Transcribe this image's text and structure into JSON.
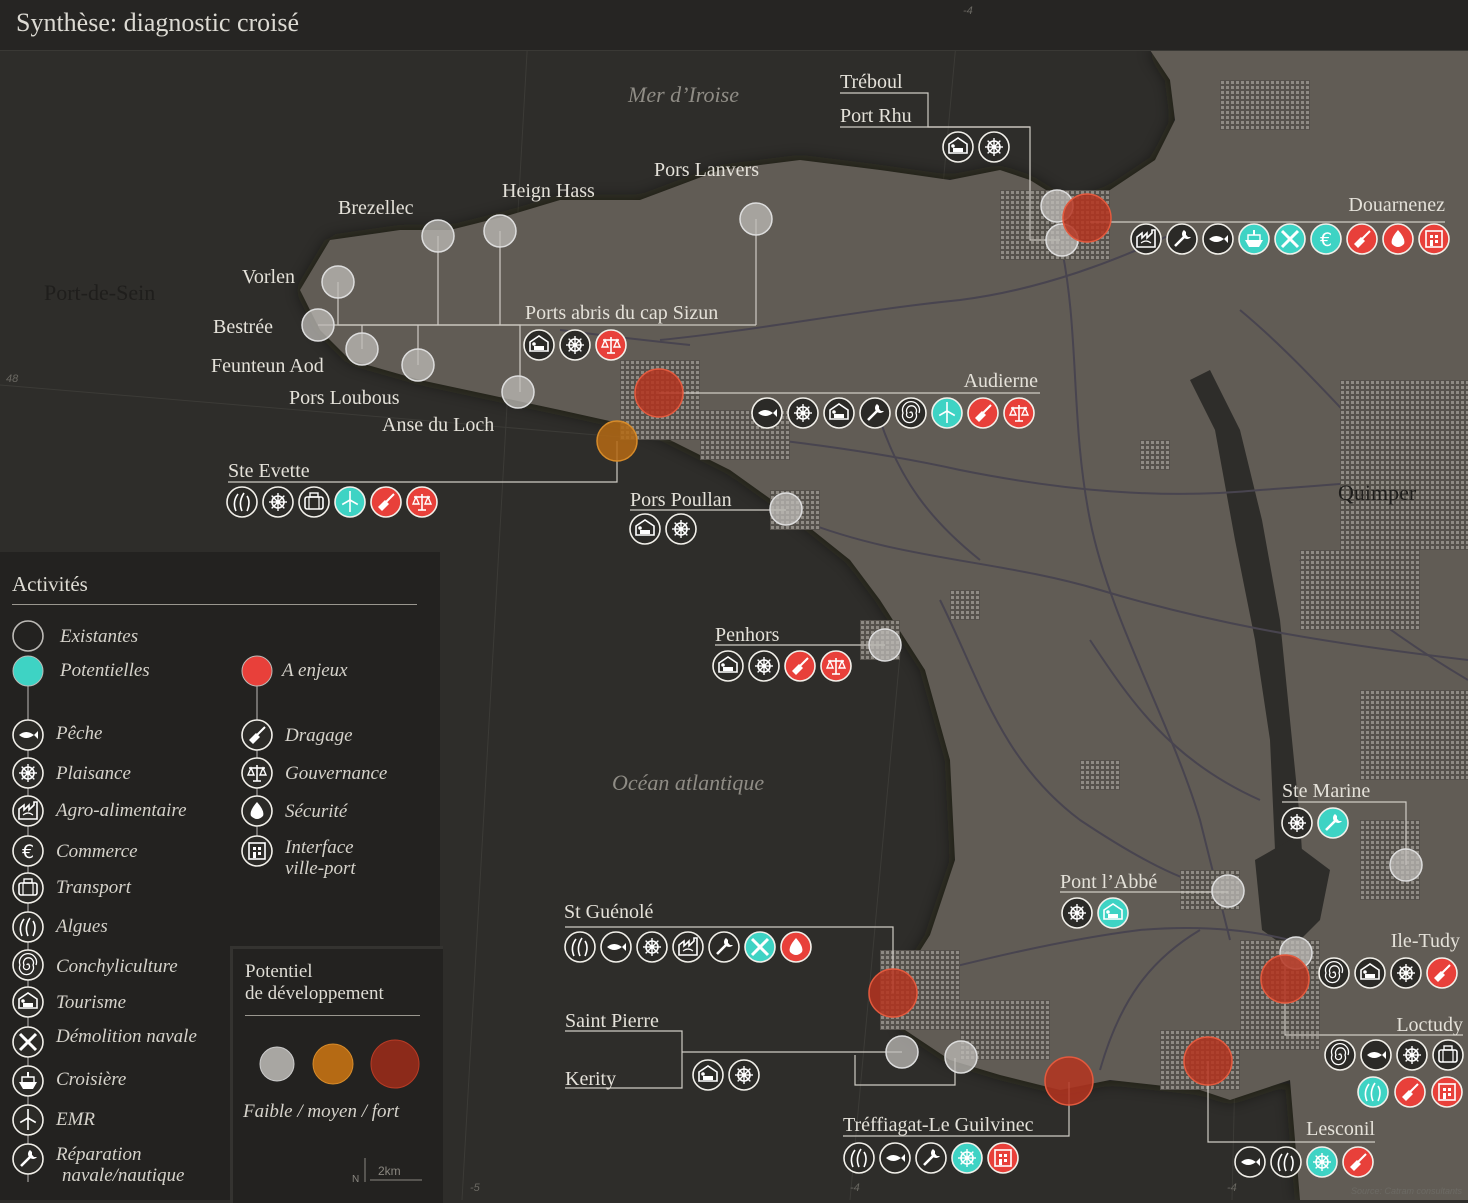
{
  "title": "Synthèse: diagnostic croisé",
  "seas": {
    "iroise": "Mer d’Iroise",
    "atlantique": "Océan atlantique"
  },
  "cities": {
    "sein": "Port-de-Sein",
    "quimper": "Quimper"
  },
  "grid": {
    "lat48": "48",
    "lon_m5": "-5",
    "lon_m4a": "-4",
    "lon_m4b": "-4",
    "lon_m4c": "-4"
  },
  "scale": {
    "north": "N",
    "label": "2km"
  },
  "source": "Source: Catram consultants",
  "colors": {
    "land": "#605b54",
    "sea": "#2e2d2a",
    "existing": "#bdbbb7",
    "potential": "#3ed3c4",
    "issue": "#e8403a",
    "low": "#a8a6a2",
    "medium": "#b56a14",
    "strong": "#b53420"
  },
  "ports": [
    {
      "id": "treboul",
      "name": "Tréboul",
      "level": "faible",
      "activities": []
    },
    {
      "id": "port-rhu",
      "name": "Port Rhu",
      "level": "faible",
      "activities": [
        "tourisme-e",
        "plaisance-e"
      ]
    },
    {
      "id": "douarnenez",
      "name": "Douarnenez",
      "level": "fort",
      "activities": [
        "agro-e",
        "reparation-e",
        "peche-e",
        "croisiere-p",
        "demolition-p",
        "commerce-p",
        "dragage-i",
        "securite-i",
        "interface-i"
      ]
    },
    {
      "id": "pors-lanvers",
      "name": "Pors Lanvers",
      "level": "faible",
      "activities": []
    },
    {
      "id": "heign-hass",
      "name": "Heign Hass",
      "level": "faible",
      "activities": []
    },
    {
      "id": "brezellec",
      "name": "Brezellec",
      "level": "faible",
      "activities": []
    },
    {
      "id": "vorlen",
      "name": "Vorlen",
      "level": "faible",
      "activities": []
    },
    {
      "id": "bestree",
      "name": "Bestrée",
      "level": "faible",
      "activities": []
    },
    {
      "id": "feunteun-aod",
      "name": "Feunteun Aod",
      "level": "faible",
      "activities": []
    },
    {
      "id": "pors-loubous",
      "name": "Pors Loubous",
      "level": "faible",
      "activities": []
    },
    {
      "id": "anse-du-loch",
      "name": "Anse du Loch",
      "level": "faible",
      "activities": []
    },
    {
      "id": "cap-sizun",
      "name": "Ports abris du cap Sizun",
      "level": "faible",
      "activities": [
        "tourisme-e",
        "plaisance-e",
        "gouvernance-i"
      ]
    },
    {
      "id": "audierne",
      "name": "Audierne",
      "level": "fort",
      "activities": [
        "peche-e",
        "plaisance-e",
        "tourisme-e",
        "reparation-e",
        "conchyliculture-e",
        "emr-p",
        "dragage-i",
        "gouvernance-i"
      ]
    },
    {
      "id": "ste-evette",
      "name": "Ste Evette",
      "level": "moyen",
      "activities": [
        "algues-e",
        "plaisance-e",
        "transport-e",
        "emr-p",
        "dragage-i",
        "gouvernance-i"
      ]
    },
    {
      "id": "pors-poullan",
      "name": "Pors Poullan",
      "level": "faible",
      "activities": [
        "tourisme-e",
        "plaisance-e"
      ]
    },
    {
      "id": "penhors",
      "name": "Penhors",
      "level": "faible",
      "activities": [
        "tourisme-e",
        "plaisance-e",
        "dragage-i",
        "gouvernance-i"
      ]
    },
    {
      "id": "ste-marine",
      "name": "Ste Marine",
      "level": "faible",
      "activities": [
        "plaisance-e",
        "reparation-p"
      ]
    },
    {
      "id": "pont-labbe",
      "name": "Pont l’Abbé",
      "level": "faible",
      "activities": [
        "plaisance-e",
        "tourisme-p"
      ]
    },
    {
      "id": "st-guenole",
      "name": "St Guénolé",
      "level": "fort",
      "activities": [
        "algues-e",
        "peche-e",
        "plaisance-e",
        "agro-e",
        "reparation-e",
        "demolition-p",
        "securite-i"
      ]
    },
    {
      "id": "ile-tudy",
      "name": "Ile-Tudy",
      "level": "faible",
      "activities": [
        "conchyliculture-e",
        "tourisme-e",
        "plaisance-e",
        "dragage-i"
      ]
    },
    {
      "id": "loctudy",
      "name": "Loctudy",
      "level": "fort",
      "activities": [
        "conchyliculture-e",
        "peche-e",
        "plaisance-e",
        "transport-e",
        "algues-p",
        "dragage-i",
        "interface-i"
      ]
    },
    {
      "id": "saint-pierre",
      "name": "Saint Pierre",
      "level": "faible",
      "activities": [
        "tourisme-e",
        "plaisance-e"
      ]
    },
    {
      "id": "kerity",
      "name": "Kerity",
      "level": "faible",
      "activities": []
    },
    {
      "id": "treffiagat",
      "name": "Tréffiagat-Le Guilvinec",
      "level": "fort",
      "activities": [
        "algues-e",
        "peche-e",
        "reparation-e",
        "plaisance-p",
        "interface-i"
      ]
    },
    {
      "id": "lesconil",
      "name": "Lesconil",
      "level": "fort",
      "activities": [
        "peche-e",
        "algues-e",
        "plaisance-p",
        "dragage-i"
      ]
    }
  ],
  "legend": {
    "title": "Activités",
    "existantes": "Existantes",
    "potentielles": "Potentielles",
    "enjeux": "A enjeux",
    "peche": "Pêche",
    "plaisance": "Plaisance",
    "agro": "Agro-alimentaire",
    "commerce": "Commerce",
    "transport": "Transport",
    "algues": "Algues",
    "conchyliculture": "Conchyliculture",
    "tourisme": "Tourisme",
    "demolition": "Démolition navale",
    "croisiere": "Croisière",
    "emr": "EMR",
    "reparation_1": "Réparation",
    "reparation_2": "navale/nautique",
    "dragage": "Dragage",
    "gouvernance": "Gouvernance",
    "securite": "Sécurité",
    "interface_1": "Interface",
    "interface_2": "ville-port"
  },
  "potentiel": {
    "title_1": "Potentiel",
    "title_2": "de développement",
    "caption": "Faible / moyen / fort"
  }
}
